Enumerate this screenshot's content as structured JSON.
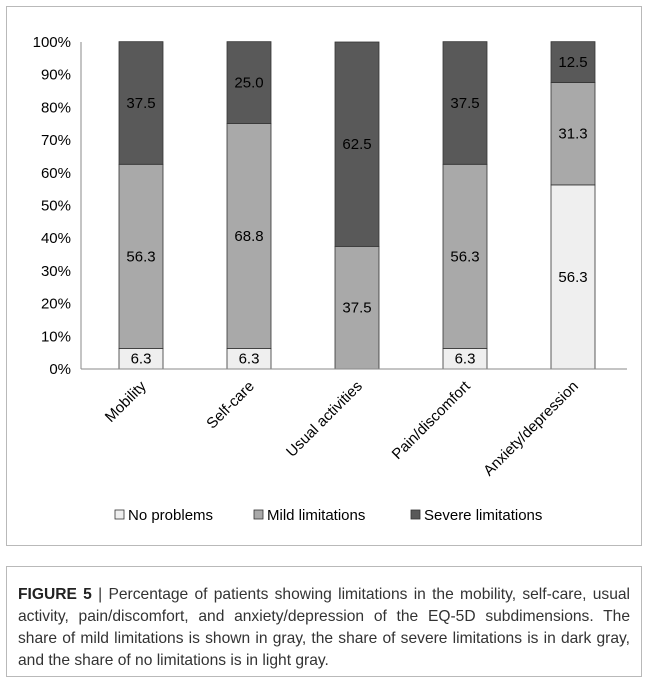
{
  "chart_data": {
    "type": "bar",
    "stacked": true,
    "categories": [
      "Mobility",
      "Self-care",
      "Usual activities",
      "Pain/discomfort",
      "Anxiety/depression"
    ],
    "series": [
      {
        "name": "No problems",
        "color": "#efefef",
        "values": [
          6.3,
          6.3,
          0,
          6.3,
          56.3
        ],
        "labels": [
          "6.3",
          "6.3",
          "",
          "6.3",
          "56.3"
        ]
      },
      {
        "name": "Mild limitations",
        "color": "#a9a9a9",
        "values": [
          56.3,
          68.8,
          37.5,
          56.3,
          31.3
        ],
        "labels": [
          "56.3",
          "68.8",
          "37.5",
          "56.3",
          "31.3"
        ]
      },
      {
        "name": "Severe limitations",
        "color": "#595959",
        "values": [
          37.5,
          25.0,
          62.5,
          37.5,
          12.5
        ],
        "labels": [
          "37.5",
          "25.0",
          "62.5",
          "37.5",
          "12.5"
        ]
      }
    ],
    "yticks": [
      "0%",
      "10%",
      "20%",
      "30%",
      "40%",
      "50%",
      "60%",
      "70%",
      "80%",
      "90%",
      "100%"
    ],
    "ylim": [
      0,
      100
    ],
    "legend": "bottom",
    "grid": false
  },
  "caption": {
    "label": "FIGURE 5",
    "separator": " | ",
    "text": "Percentage of patients showing limitations in the mobility, self-care, usual activity, pain/discomfort, and anxiety/depression of the EQ-5D subdimensions. The share of mild limitations is shown in gray, the share of severe limitations is in dark gray, and the share of no limitations is in light gray."
  }
}
